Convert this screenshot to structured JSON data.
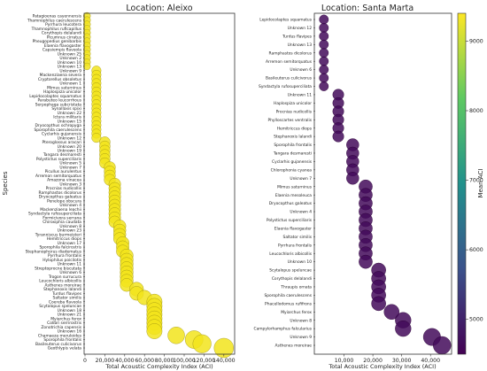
{
  "chart_data": [
    {
      "type": "scatter",
      "title": "Location: Aleixo",
      "xlabel": "Total Acoustic Complexity Index (ACI)",
      "ylabel": "Species",
      "xlim": [
        0,
        150000
      ],
      "xticks": [
        {
          "v": 0,
          "label": "0"
        },
        {
          "v": 20000,
          "label": "20,000"
        },
        {
          "v": 40000,
          "label": "40,000"
        },
        {
          "v": 60000,
          "label": "60,000"
        },
        {
          "v": 80000,
          "label": "80,000"
        },
        {
          "v": 100000,
          "label": "100,000"
        },
        {
          "v": 120000,
          "label": "120,000"
        },
        {
          "v": 140000,
          "label": "140,000"
        }
      ],
      "grid": false,
      "color": "#f2e41c",
      "points": [
        {
          "species": "Patagioenas cayennensis",
          "aci": 2000
        },
        {
          "species": "Thamnophilus caerulescens",
          "aci": 2000
        },
        {
          "species": "Pyrrhura leucotera",
          "aci": 2000
        },
        {
          "species": "Thamnophilus ruficapillus",
          "aci": 2000
        },
        {
          "species": "Corythopis delalandi",
          "aci": 2000
        },
        {
          "species": "Picumnus cirratus",
          "aci": 2000
        },
        {
          "species": "Pheugopedius genibarbis",
          "aci": 2000
        },
        {
          "species": "Elaenia flavogaster",
          "aci": 2000
        },
        {
          "species": "Capsiempis flaveola",
          "aci": 2000
        },
        {
          "species": "Unknown 25",
          "aci": 2000
        },
        {
          "species": "Unknown 2",
          "aci": 2000
        },
        {
          "species": "Unknown 10",
          "aci": 2000
        },
        {
          "species": "Unknown 13",
          "aci": 2000
        },
        {
          "species": "Unknown 9",
          "aci": 11500
        },
        {
          "species": "Mackenziaena severa",
          "aci": 11500
        },
        {
          "species": "Cryptorellus obsoletus",
          "aci": 11500
        },
        {
          "species": "Unknown 1",
          "aci": 11500
        },
        {
          "species": "Mimus saturninus",
          "aci": 11500
        },
        {
          "species": "Haplospiza unicolor",
          "aci": 11500
        },
        {
          "species": "Lepidocolaptes squamatus",
          "aci": 11500
        },
        {
          "species": "Parabuteo leucorrhous",
          "aci": 11500
        },
        {
          "species": "Serpophaga subcristata",
          "aci": 11500
        },
        {
          "species": "Synallaxis spixi",
          "aci": 11500
        },
        {
          "species": "Unknown 22",
          "aci": 11500
        },
        {
          "species": "Ictura militaris",
          "aci": 11500
        },
        {
          "species": "Unknown 15",
          "aci": 11500
        },
        {
          "species": "Dryocopthus ochropyga",
          "aci": 11500
        },
        {
          "species": "Sporophila caerulescens",
          "aci": 11500
        },
        {
          "species": "Cyclarhis gujanensis",
          "aci": 11500
        },
        {
          "species": "Unknown 12",
          "aci": 11500
        },
        {
          "species": "Pteroglossus aracari",
          "aci": 20000
        },
        {
          "species": "Unknown 20",
          "aci": 20000
        },
        {
          "species": "Unknown 19",
          "aci": 20000
        },
        {
          "species": "Tangara desmaresti",
          "aci": 20000
        },
        {
          "species": "Polystictus superciliaris",
          "aci": 20000
        },
        {
          "species": "Unknown 5",
          "aci": 20000
        },
        {
          "species": "Unknown 7",
          "aci": 25000
        },
        {
          "species": "Picullus aurulentus",
          "aci": 25000
        },
        {
          "species": "Arremon semitorquatus",
          "aci": 25000
        },
        {
          "species": "Amazona vinacea",
          "aci": 25000
        },
        {
          "species": "Unknown 3",
          "aci": 30000
        },
        {
          "species": "Procnias nudicollis",
          "aci": 30000
        },
        {
          "species": "Ramphastos dicolorus",
          "aci": 30000
        },
        {
          "species": "Dryocopthus galeatus",
          "aci": 30000
        },
        {
          "species": "Penelope obscura",
          "aci": 30000
        },
        {
          "species": "Unknown 4",
          "aci": 30000
        },
        {
          "species": "Mackenziaena leachii",
          "aci": 30000
        },
        {
          "species": "Syndactyla rufosuperciliata",
          "aci": 30000
        },
        {
          "species": "Formicivora serrana",
          "aci": 30000
        },
        {
          "species": "Chiroxiphia caudata",
          "aci": 30000
        },
        {
          "species": "Unknown 8",
          "aci": 35000
        },
        {
          "species": "Unknown 23",
          "aci": 35000
        },
        {
          "species": "Tyranniscus burmeisteri",
          "aci": 35000
        },
        {
          "species": "Hemitriccus diops",
          "aci": 35000
        },
        {
          "species": "Unknown 17",
          "aci": 38000
        },
        {
          "species": "Sporophila falcirostris",
          "aci": 38000
        },
        {
          "species": "Stephanophorus diadematus",
          "aci": 38000
        },
        {
          "species": "Pyrrhura frontalis",
          "aci": 42000
        },
        {
          "species": "Hylophilus poicilotis",
          "aci": 42000
        },
        {
          "species": "Unknown 11",
          "aci": 42000
        },
        {
          "species": "Streptoprocne biscutata",
          "aci": 42000
        },
        {
          "species": "Unknown 6",
          "aci": 42000
        },
        {
          "species": "Trogon surrucura",
          "aci": 42000
        },
        {
          "species": "Leucochloris albicollis",
          "aci": 42000
        },
        {
          "species": "Asthenes moreirae",
          "aci": 42000
        },
        {
          "species": "Stephanoxis lalandi",
          "aci": 52000
        },
        {
          "species": "Turdus flavipes",
          "aci": 52000
        },
        {
          "species": "Saltator similis",
          "aci": 60000
        },
        {
          "species": "Coereba flaveola",
          "aci": 70000
        },
        {
          "species": "Scytalopus speluncae",
          "aci": 70000
        },
        {
          "species": "Unknown 18",
          "aci": 70000
        },
        {
          "species": "Unknown 21",
          "aci": 70000
        },
        {
          "species": "Myiarchus ferox",
          "aci": 70000
        },
        {
          "species": "Colibri serrirostris",
          "aci": 70000
        },
        {
          "species": "Zonotrichia capensis",
          "aci": 70000
        },
        {
          "species": "Unknown 16",
          "aci": 70000
        },
        {
          "species": "Chamaeza meruloides",
          "aci": 92000
        },
        {
          "species": "Sporophila frontalis",
          "aci": 110000
        },
        {
          "species": "Basileuterus culicivorus",
          "aci": 118000
        },
        {
          "species": "Geothlypis velata",
          "aci": 140000
        }
      ]
    },
    {
      "type": "scatter",
      "title": "Location: Santa Marta",
      "xlabel": "Total Acoustic Complexity Index (ACI)",
      "ylabel": "",
      "xlim": [
        0,
        47000
      ],
      "xticks": [
        {
          "v": 10000,
          "label": "10,000"
        },
        {
          "v": 20000,
          "label": "20,000"
        },
        {
          "v": 30000,
          "label": "30,000"
        },
        {
          "v": 40000,
          "label": "40,000"
        }
      ],
      "grid": false,
      "colorbar": {
        "label": "Mean ACI",
        "min": 4500,
        "max": 9400,
        "ticks": [
          5000,
          6000,
          7000,
          8000,
          9000
        ]
      },
      "points": [
        {
          "species": "Lepidocolaptes squamatus",
          "aci": 3000,
          "mean": 4650
        },
        {
          "species": "Unknown 12",
          "aci": 3000,
          "mean": 4650
        },
        {
          "species": "Turdus flavipes",
          "aci": 3000,
          "mean": 4650
        },
        {
          "species": "Unknown 13",
          "aci": 3000,
          "mean": 4650
        },
        {
          "species": "Ramphastos dicolorus",
          "aci": 3000,
          "mean": 4650
        },
        {
          "species": "Arremon semitorquatus",
          "aci": 3000,
          "mean": 4650
        },
        {
          "species": "Unknown 6",
          "aci": 3000,
          "mean": 4650
        },
        {
          "species": "Basileuterus culicivorus",
          "aci": 3000,
          "mean": 4650
        },
        {
          "species": "Syndactyla rufosuperciliata",
          "aci": 3000,
          "mean": 4650
        },
        {
          "species": "Unknown 11",
          "aci": 8000,
          "mean": 4650
        },
        {
          "species": "Haplospiza unicolor",
          "aci": 8000,
          "mean": 4650
        },
        {
          "species": "Procnias nudicollis",
          "aci": 8000,
          "mean": 4650
        },
        {
          "species": "Phylloscartes ventralis",
          "aci": 8000,
          "mean": 4650
        },
        {
          "species": "Hemitriccus diops",
          "aci": 8000,
          "mean": 4650
        },
        {
          "species": "Stephanoxis lalandi",
          "aci": 8000,
          "mean": 4650
        },
        {
          "species": "Sporophila frontalis",
          "aci": 13000,
          "mean": 4650
        },
        {
          "species": "Tangara desmaresti",
          "aci": 13000,
          "mean": 4650
        },
        {
          "species": "Cyclarhis gujanensis",
          "aci": 13000,
          "mean": 4650
        },
        {
          "species": "Chlorophonia cyanea",
          "aci": 13000,
          "mean": 4650
        },
        {
          "species": "Unknown 7",
          "aci": 13000,
          "mean": 4650
        },
        {
          "species": "Mimus saturninus",
          "aci": 17500,
          "mean": 4650
        },
        {
          "species": "Elaenia mesoleuca",
          "aci": 17500,
          "mean": 4650
        },
        {
          "species": "Dryocopthus galeatus",
          "aci": 17500,
          "mean": 4650
        },
        {
          "species": "Unknown 4",
          "aci": 17500,
          "mean": 4650
        },
        {
          "species": "Polystictus superciliaris",
          "aci": 17500,
          "mean": 4650
        },
        {
          "species": "Elaenia flavogaster",
          "aci": 17500,
          "mean": 4650
        },
        {
          "species": "Saltator similis",
          "aci": 17500,
          "mean": 4650
        },
        {
          "species": "Pyrrhura frontalis",
          "aci": 17500,
          "mean": 4650
        },
        {
          "species": "Leucochloris albicollis",
          "aci": 17500,
          "mean": 4650
        },
        {
          "species": "Unknown 10",
          "aci": 17500,
          "mean": 4650
        },
        {
          "species": "Scytalopus speluncae",
          "aci": 22000,
          "mean": 4650
        },
        {
          "species": "Corythopis delalandi",
          "aci": 22000,
          "mean": 4650
        },
        {
          "species": "Thraupis ornata",
          "aci": 22000,
          "mean": 4650
        },
        {
          "species": "Sporophila caerulescens",
          "aci": 22000,
          "mean": 4650
        },
        {
          "species": "Phacellodomus rufifrons",
          "aci": 22000,
          "mean": 4650
        },
        {
          "species": "Myiarchus ferox",
          "aci": 26500,
          "mean": 4650
        },
        {
          "species": "Unknown 8",
          "aci": 30500,
          "mean": 4650
        },
        {
          "species": "Campylorhamphus falcularius",
          "aci": 30500,
          "mean": 4650
        },
        {
          "species": "Unknown 9",
          "aci": 40500,
          "mean": 4650
        },
        {
          "species": "Asthenes moreirae",
          "aci": 44000,
          "mean": 4650
        }
      ]
    }
  ]
}
